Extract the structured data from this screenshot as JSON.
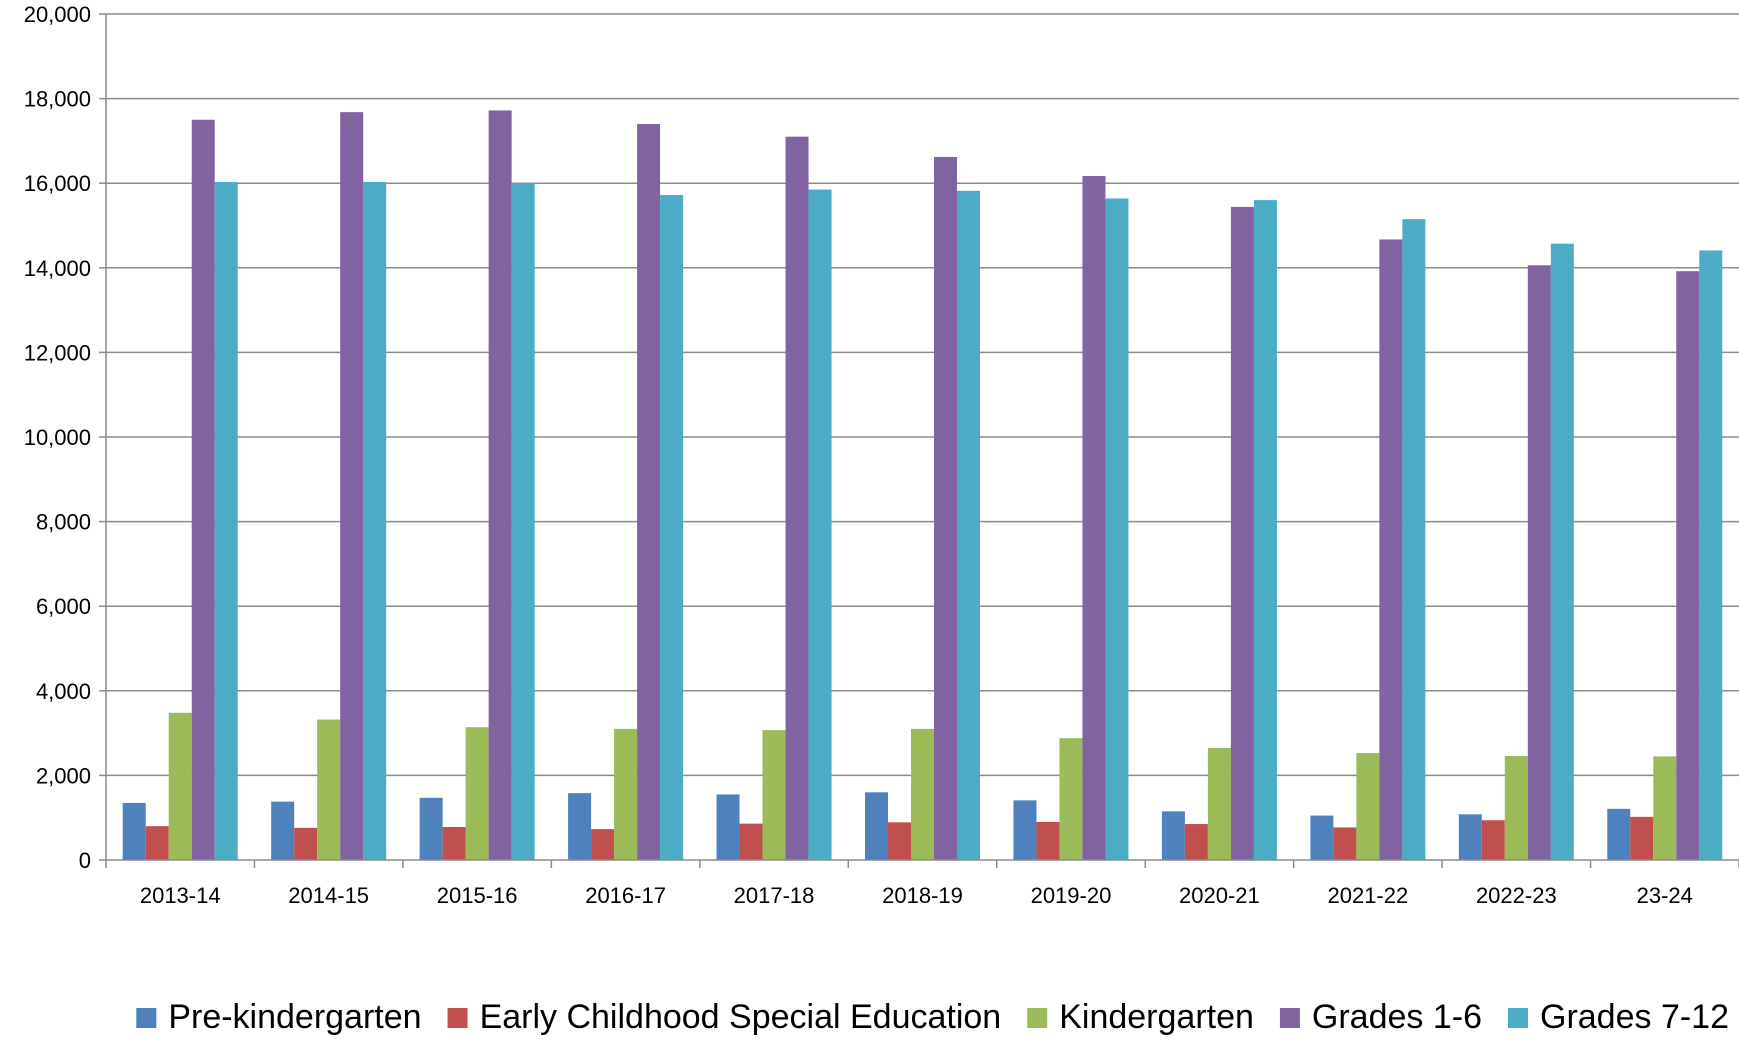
{
  "chart_data": {
    "type": "bar",
    "categories": [
      "2013-14",
      "2014-15",
      "2015-16",
      "2016-17",
      "2017-18",
      "2018-19",
      "2019-20",
      "2020-21",
      "2021-22",
      "2022-23",
      "23-24"
    ],
    "ylim": [
      0,
      20000
    ],
    "yticks": [
      "0",
      "2,000",
      "4,000",
      "6,000",
      "8,000",
      "10,000",
      "12,000",
      "14,000",
      "16,000",
      "18,000",
      "20,000"
    ],
    "ytick_values": [
      0,
      2000,
      4000,
      6000,
      8000,
      10000,
      12000,
      14000,
      16000,
      18000,
      20000
    ],
    "grid": true,
    "legend_position": "bottom",
    "series": [
      {
        "name": "Pre-kindergarten",
        "color": "#4F81BD",
        "values": [
          1350,
          1380,
          1470,
          1580,
          1550,
          1600,
          1410,
          1150,
          1050,
          1080,
          1210
        ]
      },
      {
        "name": "Early Childhood Special Education",
        "color": "#C0504D",
        "values": [
          800,
          760,
          780,
          730,
          860,
          890,
          900,
          850,
          770,
          940,
          1020
        ]
      },
      {
        "name": "Kindergarten",
        "color": "#9BBB59",
        "values": [
          3480,
          3320,
          3140,
          3100,
          3070,
          3100,
          2880,
          2650,
          2530,
          2460,
          2450
        ]
      },
      {
        "name": "Grades 1-6",
        "color": "#8064A2",
        "values": [
          17500,
          17680,
          17720,
          17400,
          17100,
          16620,
          16170,
          15440,
          14670,
          14060,
          13920
        ]
      },
      {
        "name": "Grades 7-12",
        "color": "#4BACC6",
        "values": [
          16030,
          16030,
          16000,
          15720,
          15850,
          15820,
          15640,
          15600,
          15150,
          14570,
          14410
        ]
      }
    ]
  }
}
